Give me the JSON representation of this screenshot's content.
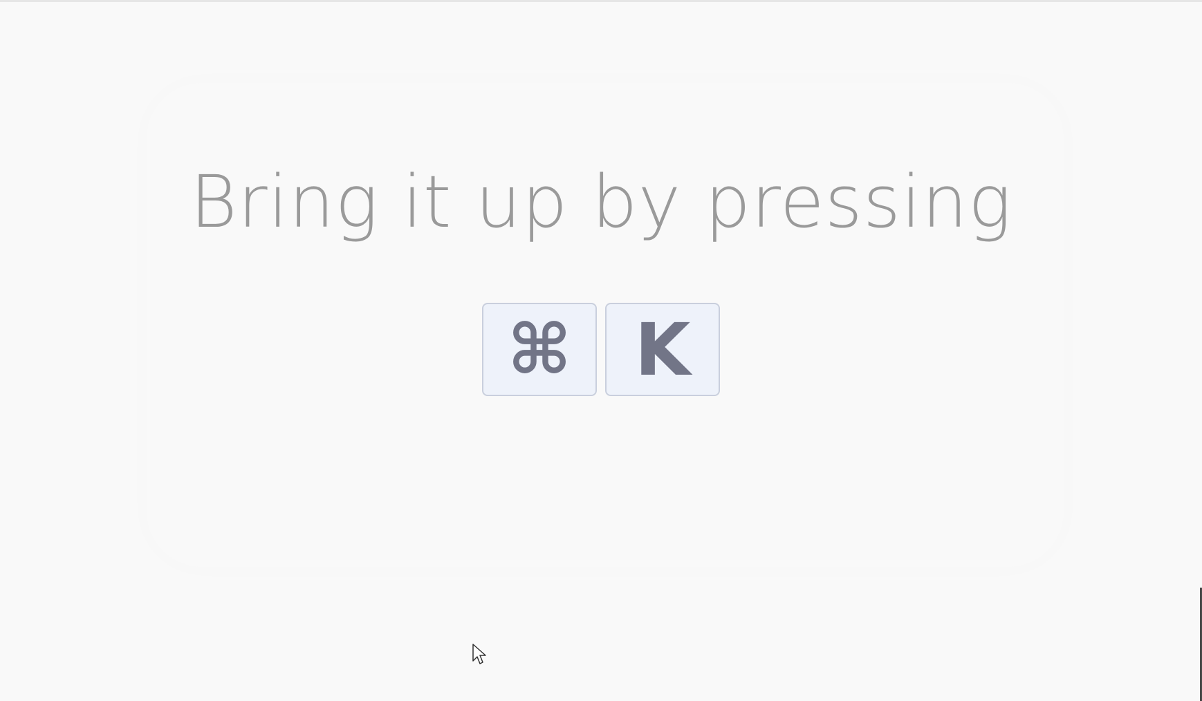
{
  "heading": "Bring it up by pressing",
  "shortcut": {
    "modifier": "⌘",
    "modifier_icon": "command-icon",
    "key": "K"
  },
  "colors": {
    "background": "#f9f9f9",
    "heading_text": "#9a9a9a",
    "key_background": "#eef2fa",
    "key_border": "#c9cfdd",
    "key_glyph": "#727587"
  }
}
